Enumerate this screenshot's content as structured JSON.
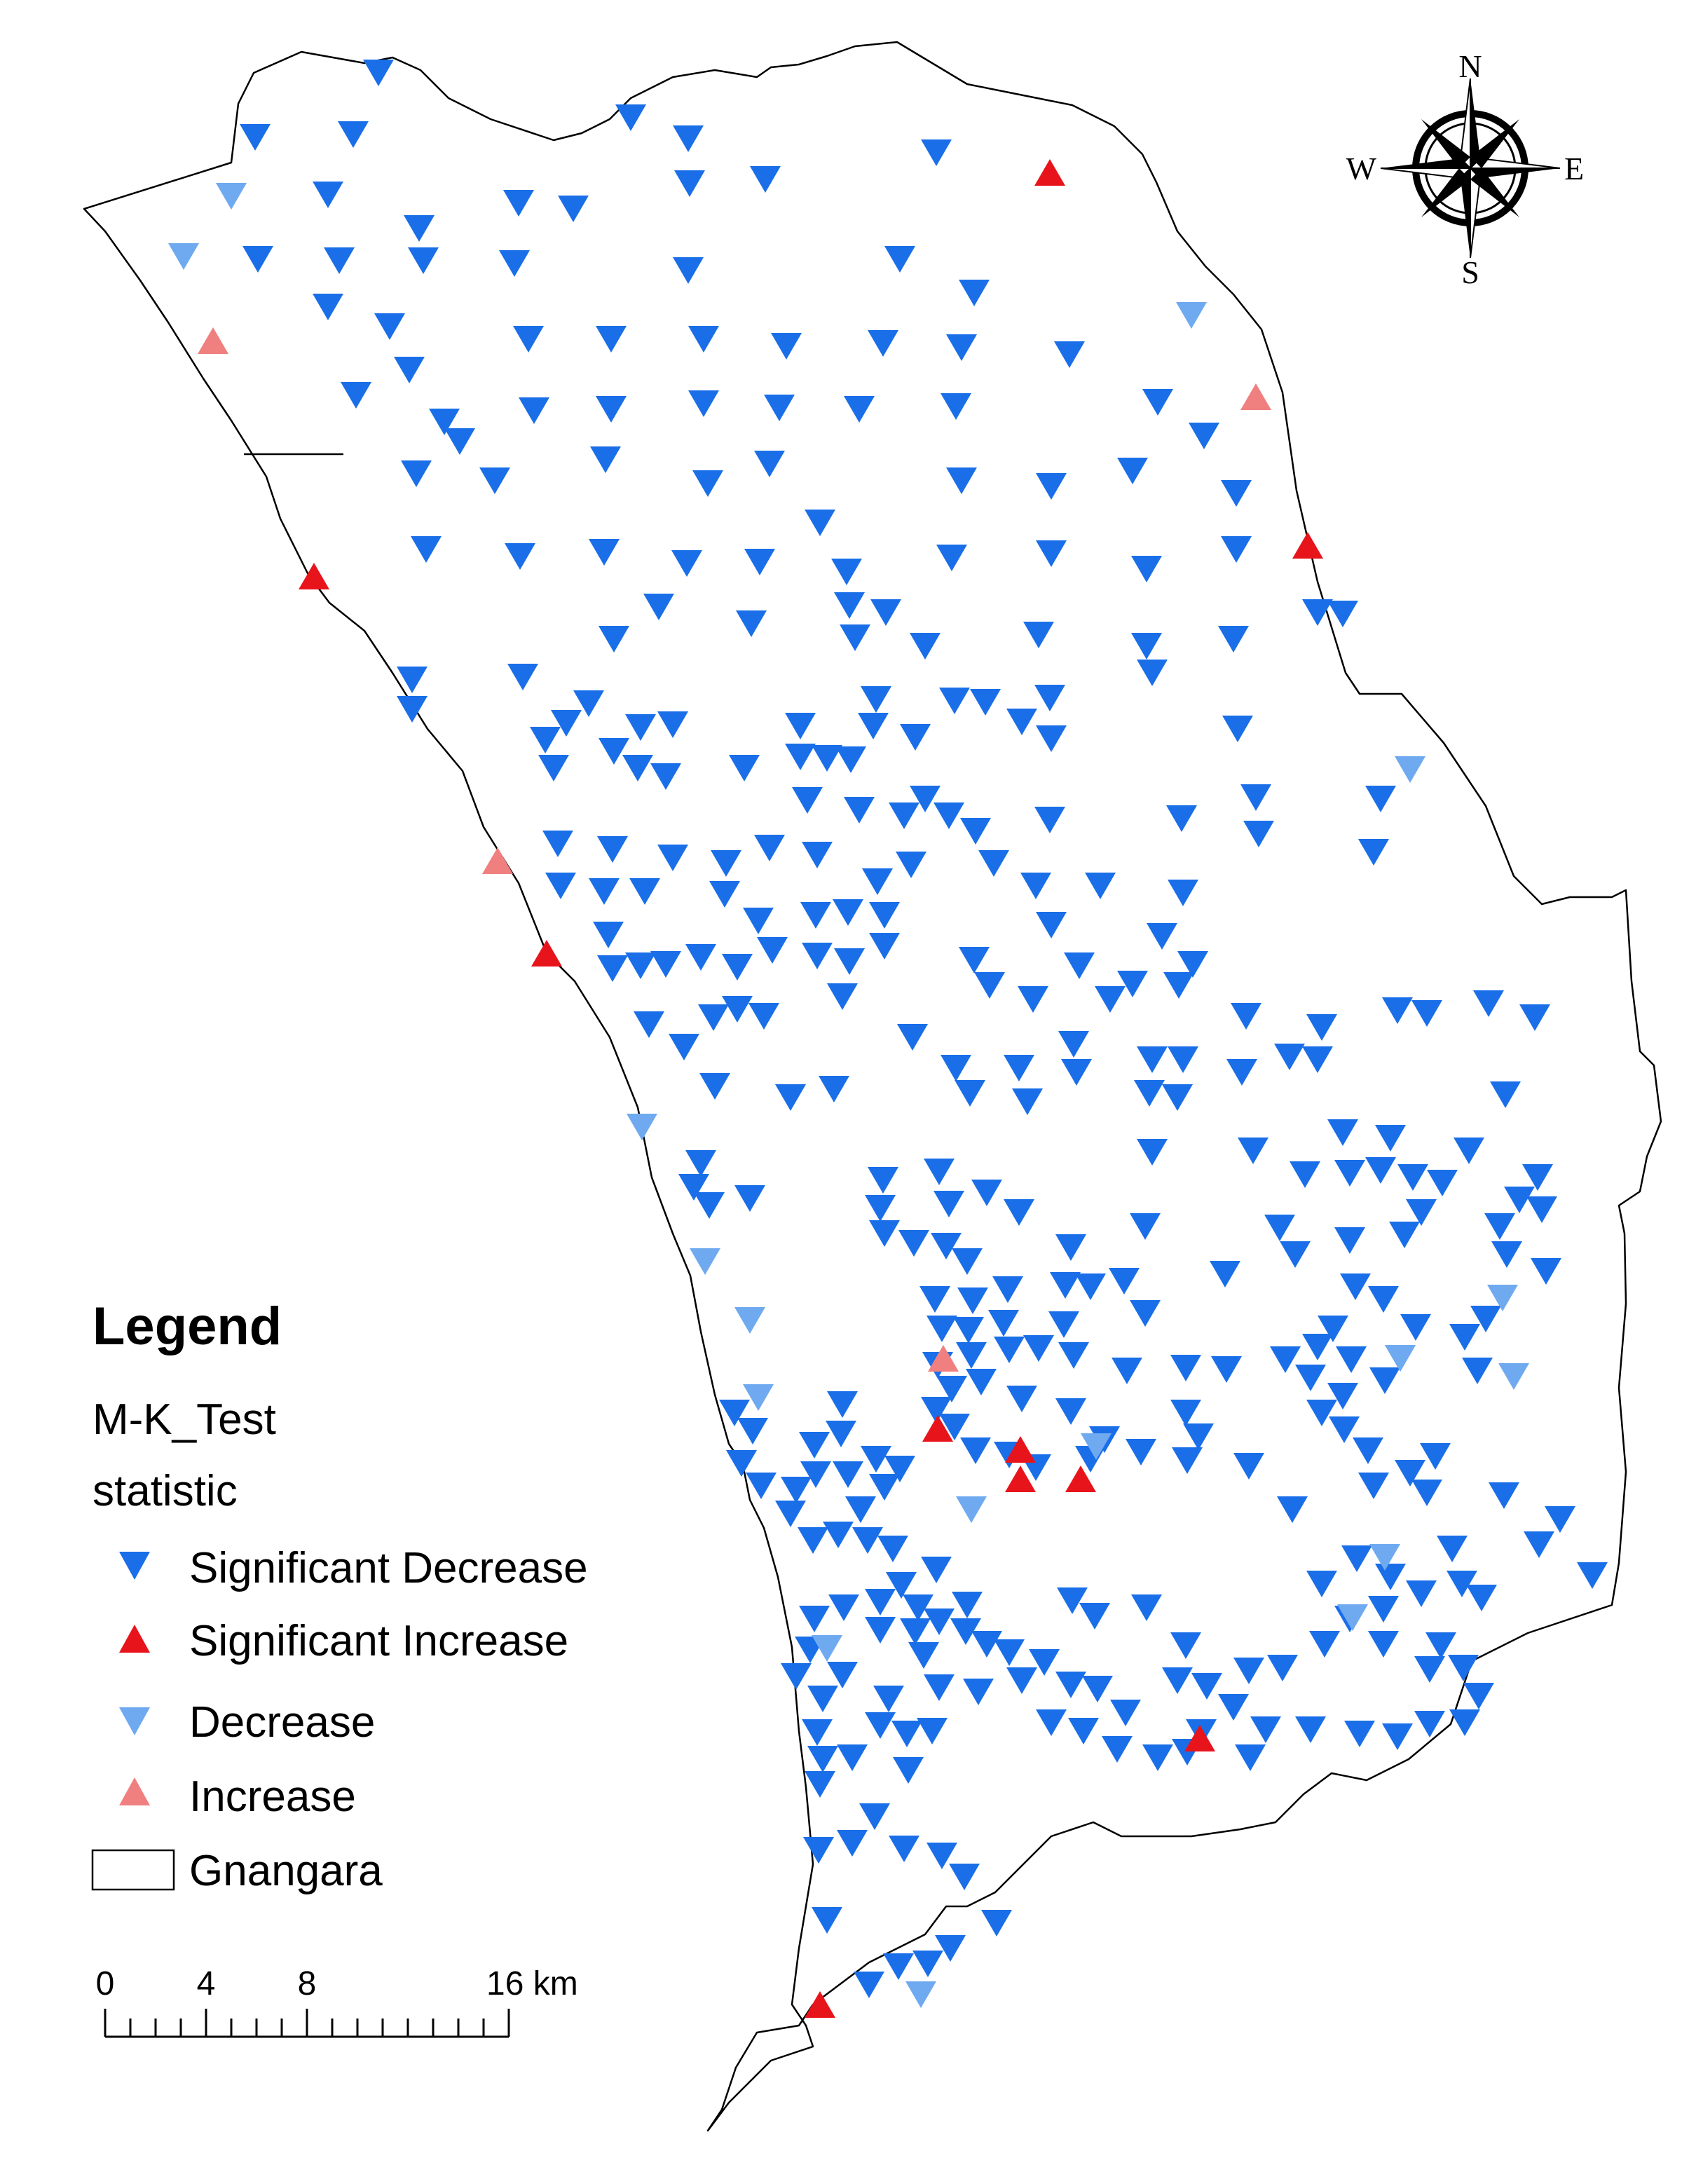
{
  "legend": {
    "title": "Legend",
    "layer_name": "M-K_Test",
    "field_name": "statistic",
    "items": [
      {
        "key": "sig_dec",
        "label": "Significant Decrease",
        "symbol": "triangle-down",
        "color": "#1A6FE8"
      },
      {
        "key": "sig_inc",
        "label": "Significant Increase",
        "symbol": "triangle-up",
        "color": "#E8141C"
      },
      {
        "key": "dec",
        "label": "Decrease",
        "symbol": "triangle-down",
        "color": "#6FAAF0"
      },
      {
        "key": "inc",
        "label": "Increase",
        "symbol": "triangle-up",
        "color": "#F08080"
      },
      {
        "key": "boundary",
        "label": "Gnangara",
        "symbol": "hollow-rectangle",
        "color": "#000000"
      }
    ]
  },
  "scale_bar": {
    "tick_labels": [
      "0",
      "4",
      "8",
      "16 km"
    ]
  },
  "north_arrow": {
    "north": "N",
    "south": "S",
    "east": "E",
    "west": "W",
    "icon": "compass-rose-icon"
  },
  "colors": {
    "boundary": "#000000",
    "background": "#ffffff"
  }
}
